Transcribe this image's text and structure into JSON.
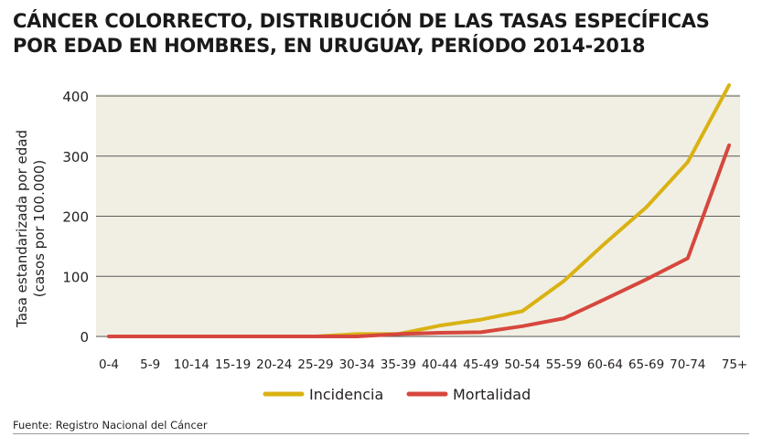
{
  "header": {
    "title_line1": "CÁNCER COLORRECTO, DISTRIBUCIÓN DE LAS TASAS ESPECÍFICAS",
    "title_line2": "POR EDAD EN HOMBRES, EN URUGUAY, PERÍODO 2014-2018"
  },
  "footer": {
    "source": "Fuente: Registro Nacional del Cáncer"
  },
  "chart_data": {
    "type": "line",
    "title": "CÁNCER COLORRECTO, DISTRIBUCIÓN DE LAS TASAS ESPECÍFICAS POR EDAD EN HOMBRES, EN URUGUAY, PERÍODO 2014-2018",
    "ylabel": "Tasa estandarizada por edad",
    "ylabel_sub": "(casos por 100.000)",
    "xlabel": "",
    "categories": [
      "0-4",
      "5-9",
      "10-14",
      "15-19",
      "20-24",
      "25-29",
      "30-34",
      "35-39",
      "40-44",
      "45-49",
      "50-54",
      "55-59",
      "60-64",
      "65-69",
      "70-74",
      "75+"
    ],
    "yticks": [
      0,
      100,
      200,
      300,
      400
    ],
    "ylim": [
      0,
      400
    ],
    "grid": "horizontal",
    "legend_position": "bottom",
    "plot_background": "#f1efe3",
    "series": [
      {
        "name": "Incidencia",
        "color": "#d9b213",
        "values": [
          0,
          0,
          0,
          0,
          0,
          0,
          4,
          4,
          18,
          28,
          42,
          92,
          155,
          215,
          290,
          418
        ]
      },
      {
        "name": "Mortalidad",
        "color": "#d6473d",
        "values": [
          0,
          0,
          0,
          0,
          0,
          0,
          0,
          4,
          6,
          7,
          17,
          30,
          62,
          95,
          130,
          318
        ]
      }
    ]
  }
}
